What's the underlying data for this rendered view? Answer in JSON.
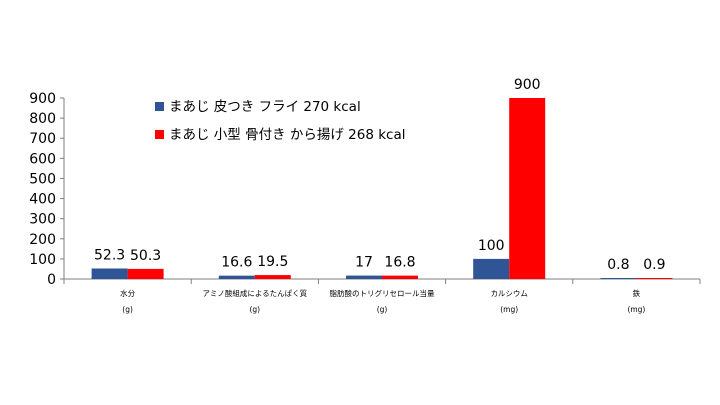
{
  "chart_data": {
    "type": "bar",
    "categories": [
      {
        "name": "水分",
        "unit": "(g)"
      },
      {
        "name": "アミノ酸組成によるたんぱく質",
        "unit": "(g)"
      },
      {
        "name": "脂肪酸のトリグリセロール当量",
        "unit": "(g)"
      },
      {
        "name": "カルシウム",
        "unit": "(mg)"
      },
      {
        "name": "鉄",
        "unit": "(mg)"
      }
    ],
    "series": [
      {
        "name": "まあじ 皮つき フライ 270 kcal",
        "color": "#2f5597",
        "values": [
          52.3,
          16.6,
          17,
          100,
          0.8
        ],
        "labels": [
          "52.3",
          "16.6",
          "17",
          "100",
          "0.8"
        ]
      },
      {
        "name": "まあじ 小型 骨付き から揚げ 268 kcal",
        "color": "#ff0000",
        "values": [
          50.3,
          19.5,
          16.8,
          900,
          0.9
        ],
        "labels": [
          "50.3",
          "19.5",
          "16.8",
          "900",
          "0.9"
        ]
      }
    ],
    "ylim": [
      0,
      900
    ],
    "yticks": [
      0,
      100,
      200,
      300,
      400,
      500,
      600,
      700,
      800,
      900
    ],
    "grid": false,
    "legend_position": "top-left inside plot"
  }
}
